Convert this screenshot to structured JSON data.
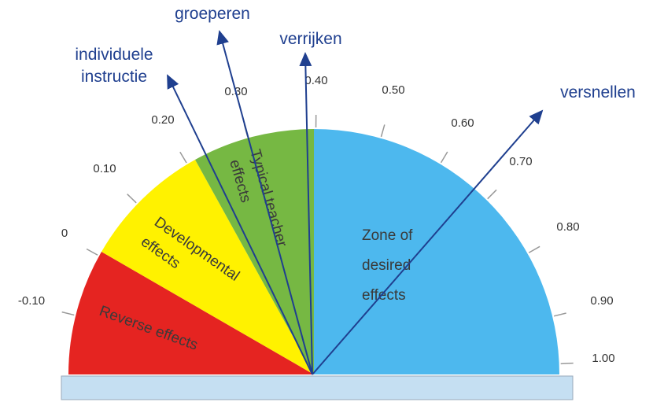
{
  "ticks": [
    "-0.10",
    "0",
    "0.10",
    "0.20",
    "0.30",
    "0.40",
    "0.50",
    "0.60",
    "0.70",
    "0.80",
    "0.90",
    "1.00"
  ],
  "zones": {
    "reverse": "Reverse effects",
    "developmental": [
      "Developmental",
      "effects"
    ],
    "typical": [
      "Typical teacher",
      "effects"
    ],
    "desired": [
      "Zone of",
      "desired",
      "effects"
    ]
  },
  "arrows": {
    "individual": [
      "individuele",
      "instructie"
    ],
    "group": "groeperen",
    "enrich": "verrijken",
    "accelerate": "versnellen"
  }
}
